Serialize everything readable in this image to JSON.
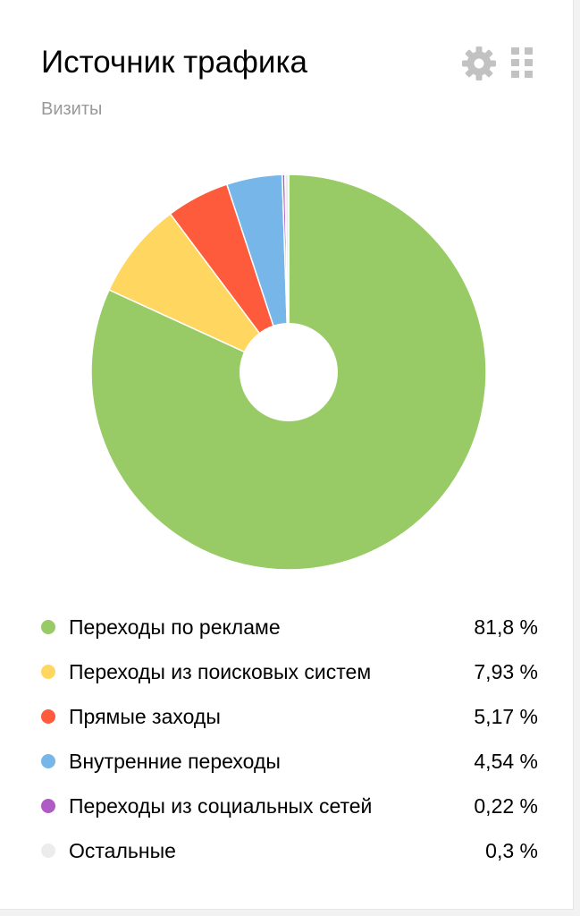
{
  "header": {
    "title": "Источник трафика",
    "subtitle": "Визиты"
  },
  "icons": {
    "settings": "gear-icon",
    "drag": "drag-handle-icon"
  },
  "legend": [
    {
      "label": "Переходы по рекламе",
      "value": "81,8 %",
      "color": "#98cb66"
    },
    {
      "label": "Переходы из поисковых систем",
      "value": "7,93 %",
      "color": "#ffd660"
    },
    {
      "label": "Прямые заходы",
      "value": "5,17 %",
      "color": "#fe5a3c"
    },
    {
      "label": "Внутренние переходы",
      "value": "4,54 %",
      "color": "#77b6e8"
    },
    {
      "label": "Переходы из социальных сетей",
      "value": "0,22 %",
      "color": "#b05ac5"
    },
    {
      "label": "Остальные",
      "value": "0,3 %",
      "color": "#ececec"
    }
  ],
  "chart_data": {
    "type": "pie",
    "title": "Источник трафика",
    "subtitle": "Визиты",
    "donut": true,
    "legend_position": "bottom",
    "slices": [
      {
        "name": "Переходы по рекламе",
        "value": 81.8,
        "color": "#98cb66"
      },
      {
        "name": "Переходы из поисковых систем",
        "value": 7.93,
        "color": "#ffd660"
      },
      {
        "name": "Прямые заходы",
        "value": 5.17,
        "color": "#fe5a3c"
      },
      {
        "name": "Внутренние переходы",
        "value": 4.54,
        "color": "#77b6e8"
      },
      {
        "name": "Переходы из социальных сетей",
        "value": 0.22,
        "color": "#b05ac5"
      },
      {
        "name": "Остальные",
        "value": 0.3,
        "color": "#ececec"
      }
    ]
  }
}
